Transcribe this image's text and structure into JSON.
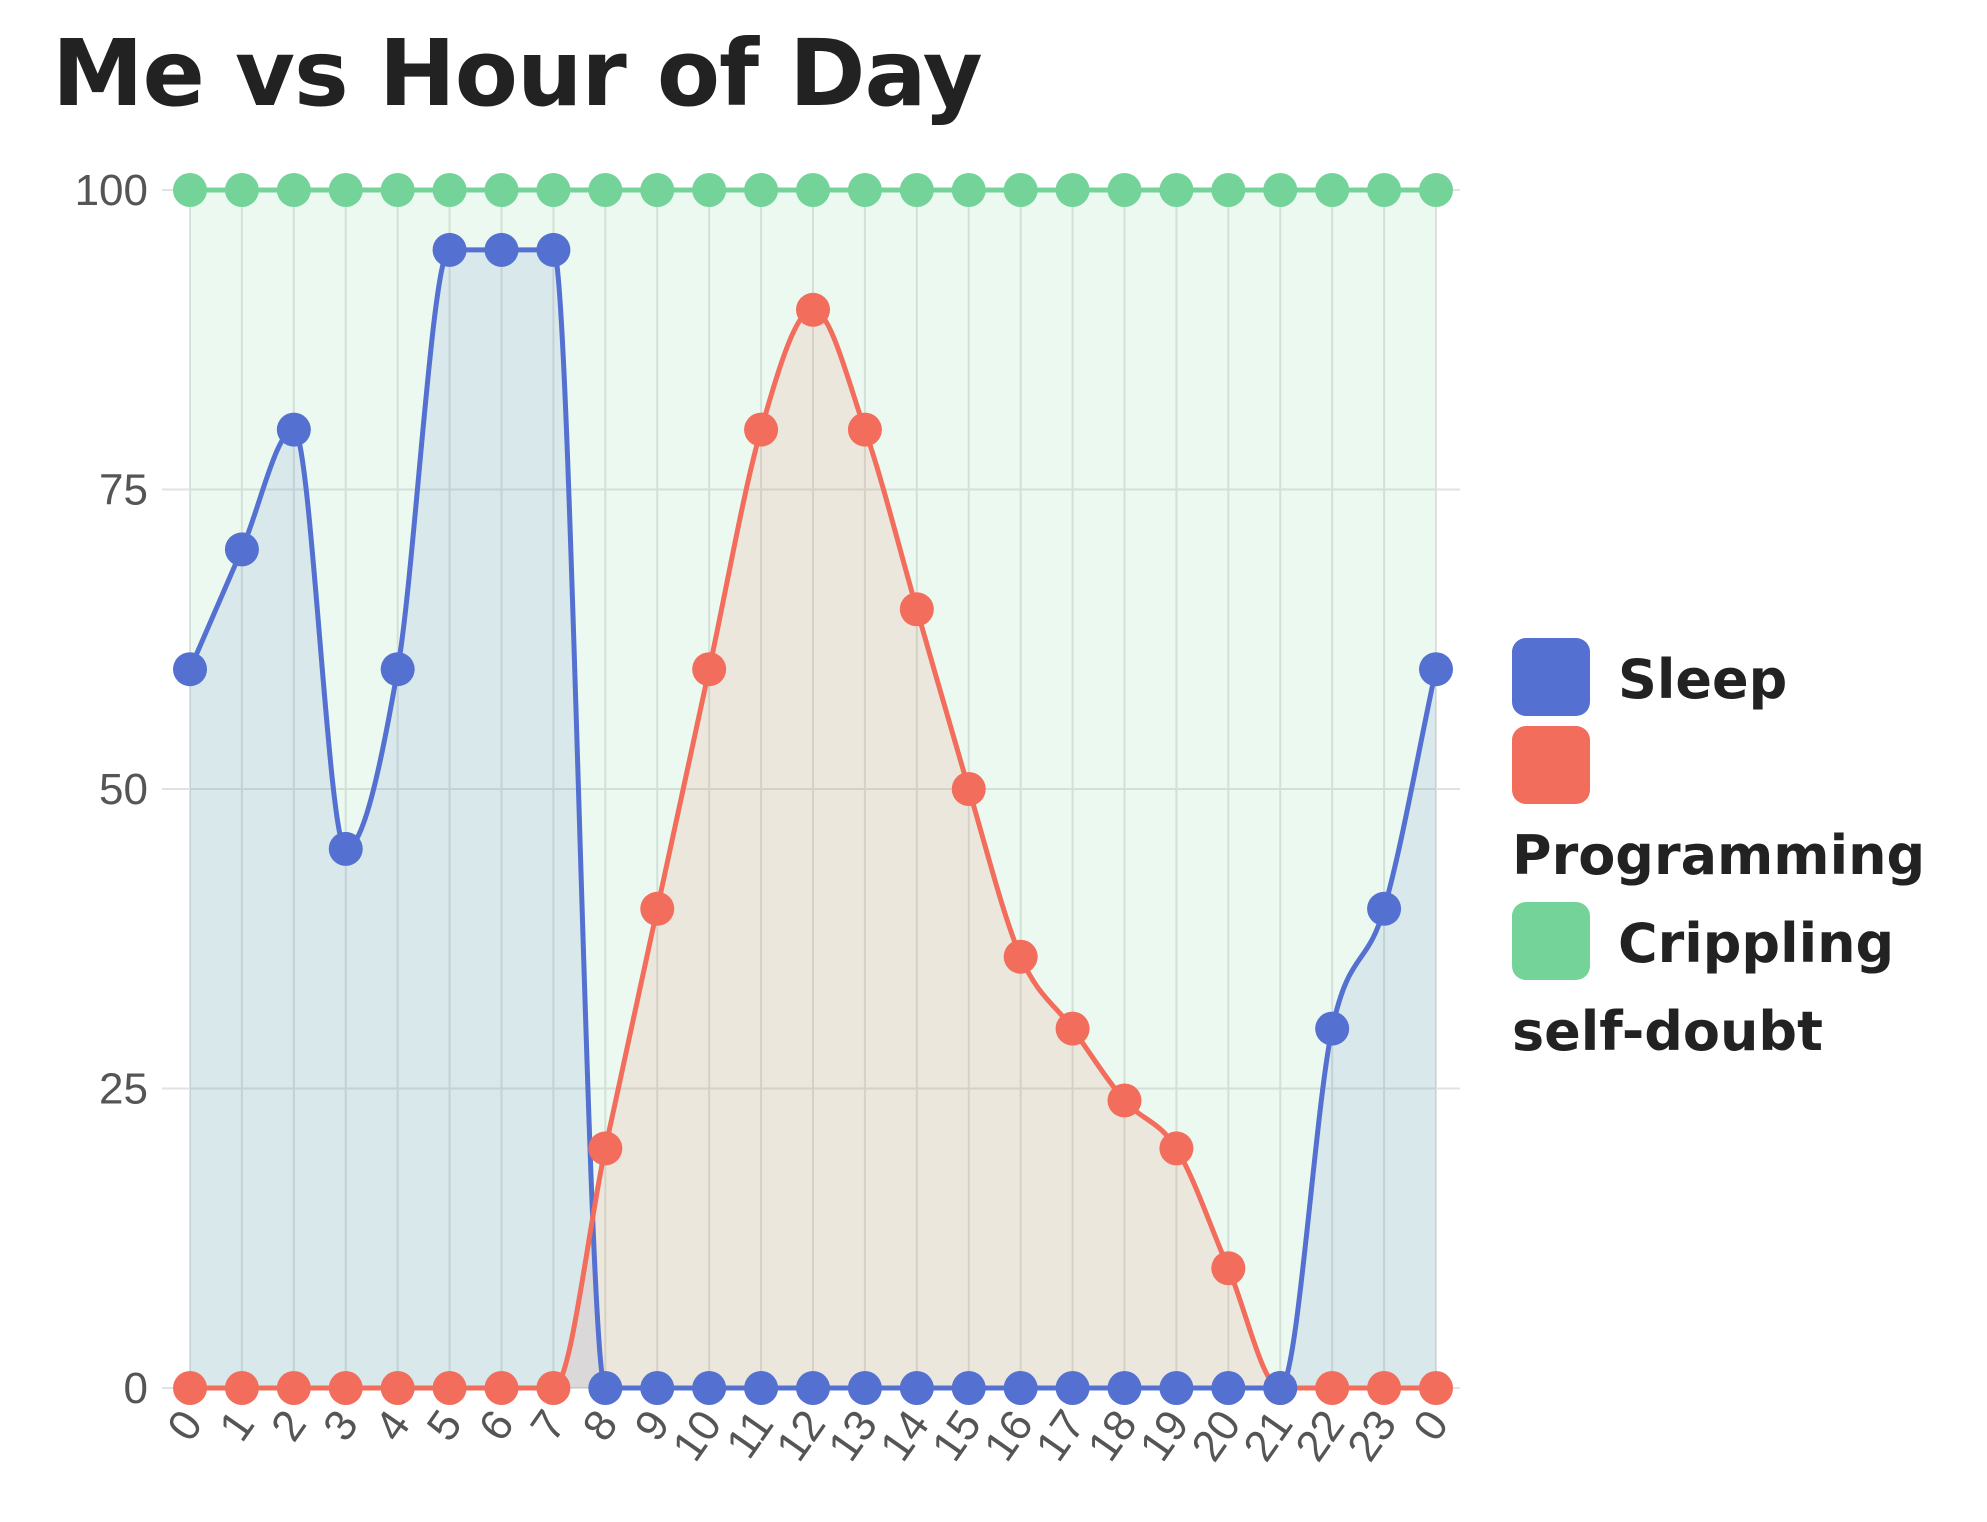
{
  "chart_data": {
    "type": "line",
    "title": "Me vs Hour of Day",
    "categories": [
      "0",
      "1",
      "2",
      "3",
      "4",
      "5",
      "6",
      "7",
      "8",
      "9",
      "10",
      "11",
      "12",
      "13",
      "14",
      "15",
      "16",
      "17",
      "18",
      "19",
      "20",
      "21",
      "22",
      "23",
      "0"
    ],
    "ylim": [
      0,
      100
    ],
    "yticks": [
      "0",
      "25",
      "50",
      "75",
      "100"
    ],
    "grid": true,
    "legend_position": "right",
    "series": [
      {
        "name": "Sleep",
        "color": "#5470d1",
        "fill": "rgba(84,112,209,0.12)",
        "values": [
          60,
          70,
          80,
          45,
          60,
          95,
          95,
          95,
          0,
          0,
          0,
          0,
          0,
          0,
          0,
          0,
          0,
          0,
          0,
          0,
          0,
          0,
          30,
          40,
          60
        ]
      },
      {
        "name": "Programming",
        "color": "#f26d5b",
        "fill": "rgba(242,109,91,0.12)",
        "values": [
          0,
          0,
          0,
          0,
          0,
          0,
          0,
          0,
          20,
          40,
          60,
          80,
          90,
          80,
          65,
          50,
          36,
          30,
          24,
          20,
          10,
          0,
          0,
          0,
          0
        ]
      },
      {
        "name": "Crippling self-doubt",
        "color": "#74d398",
        "fill": "rgba(116,211,152,0.14)",
        "values": [
          100,
          100,
          100,
          100,
          100,
          100,
          100,
          100,
          100,
          100,
          100,
          100,
          100,
          100,
          100,
          100,
          100,
          100,
          100,
          100,
          100,
          100,
          100,
          100,
          100
        ]
      }
    ]
  }
}
